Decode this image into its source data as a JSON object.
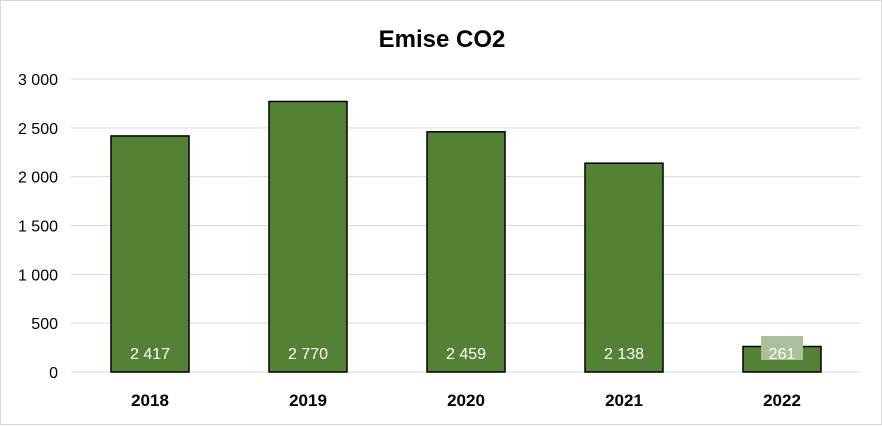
{
  "chart_data": {
    "type": "bar",
    "title": "Emise CO2",
    "categories": [
      "2018",
      "2019",
      "2020",
      "2021",
      "2022"
    ],
    "values": [
      2417,
      2770,
      2459,
      2138,
      261
    ],
    "data_labels": [
      "2 417",
      "2 770",
      "2 459",
      "2 138",
      "261"
    ],
    "yticks": [
      0,
      500,
      1000,
      1500,
      2000,
      2500,
      3000
    ],
    "ytick_labels": [
      "0",
      "500",
      "1 000",
      "1 500",
      "2 000",
      "2 500",
      "3 000"
    ],
    "ylim": [
      0,
      3000
    ],
    "grid": true,
    "legend": "none",
    "colors": {
      "bar_fill": "#548235",
      "bar_stroke": "#000000",
      "grid": "#d9d9d9",
      "label_highlight": "#a9c19b"
    }
  }
}
